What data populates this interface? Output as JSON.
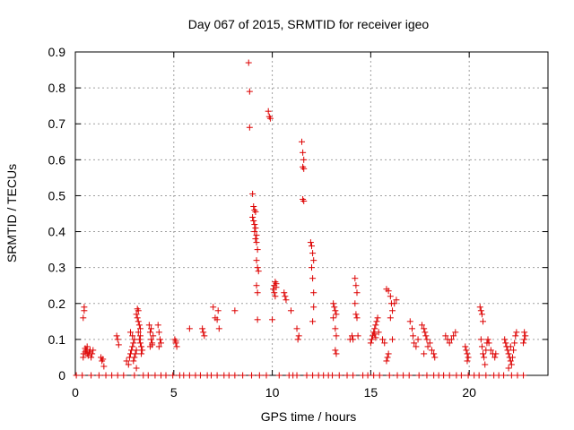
{
  "chart_data": {
    "type": "scatter",
    "title": "Day 067 of 2015, SRMTID for receiver igeo",
    "xlabel": "GPS time / hours",
    "ylabel": "SRMTID / TECUs",
    "xlim": [
      0,
      24
    ],
    "ylim": [
      0,
      0.9
    ],
    "xticks": [
      0,
      5,
      10,
      15,
      20
    ],
    "yticks": [
      0,
      0.1,
      0.2,
      0.3,
      0.4,
      0.5,
      0.6,
      0.7,
      0.8,
      0.9
    ],
    "xtick_labels": [
      "0",
      "5",
      "10",
      "15",
      "20"
    ],
    "ytick_labels": [
      "0",
      "0.1",
      "0.2",
      "0.3",
      "0.4",
      "0.5",
      "0.6",
      "0.7",
      "0.8",
      "0.9"
    ],
    "grid": true,
    "marker": "+",
    "color": "#dd0000",
    "series": [
      {
        "name": "SRMTID",
        "points": [
          [
            0.4,
            0.16
          ],
          [
            0.45,
            0.18
          ],
          [
            0.45,
            0.19
          ],
          [
            0.4,
            0.05
          ],
          [
            0.42,
            0.06
          ],
          [
            0.5,
            0.065
          ],
          [
            0.55,
            0.07
          ],
          [
            0.6,
            0.06
          ],
          [
            0.65,
            0.055
          ],
          [
            0.7,
            0.065
          ],
          [
            0.75,
            0.07
          ],
          [
            0.8,
            0.05
          ],
          [
            0.85,
            0.06
          ],
          [
            0.9,
            0.07
          ],
          [
            0.5,
            0.075
          ],
          [
            0.6,
            0.08
          ],
          [
            1.3,
            0.05
          ],
          [
            1.35,
            0.04
          ],
          [
            1.4,
            0.045
          ],
          [
            1.45,
            0.025
          ],
          [
            2.1,
            0.11
          ],
          [
            2.15,
            0.1
          ],
          [
            2.2,
            0.085
          ],
          [
            2.6,
            0.04
          ],
          [
            2.7,
            0.03
          ],
          [
            2.75,
            0.05
          ],
          [
            2.8,
            0.06
          ],
          [
            2.85,
            0.07
          ],
          [
            2.9,
            0.08
          ],
          [
            2.95,
            0.09
          ],
          [
            3.0,
            0.1
          ],
          [
            2.8,
            0.12
          ],
          [
            2.9,
            0.11
          ],
          [
            3.0,
            0.05
          ],
          [
            3.05,
            0.06
          ],
          [
            3.1,
            0.07
          ],
          [
            2.95,
            0.04
          ],
          [
            3.1,
            0.17
          ],
          [
            3.15,
            0.16
          ],
          [
            3.2,
            0.15
          ],
          [
            3.25,
            0.14
          ],
          [
            3.3,
            0.13
          ],
          [
            3.2,
            0.12
          ],
          [
            3.25,
            0.1
          ],
          [
            3.3,
            0.09
          ],
          [
            3.35,
            0.08
          ],
          [
            3.2,
            0.18
          ],
          [
            3.15,
            0.185
          ],
          [
            3.3,
            0.11
          ],
          [
            3.1,
            0.02
          ],
          [
            3.35,
            0.06
          ],
          [
            3.4,
            0.07
          ],
          [
            3.75,
            0.14
          ],
          [
            3.8,
            0.12
          ],
          [
            3.85,
            0.1
          ],
          [
            3.9,
            0.09
          ],
          [
            3.8,
            0.08
          ],
          [
            3.85,
            0.13
          ],
          [
            3.9,
            0.085
          ],
          [
            3.95,
            0.11
          ],
          [
            4.2,
            0.14
          ],
          [
            4.25,
            0.12
          ],
          [
            4.3,
            0.1
          ],
          [
            4.35,
            0.09
          ],
          [
            4.25,
            0.08
          ],
          [
            5.05,
            0.1
          ],
          [
            5.1,
            0.09
          ],
          [
            5.15,
            0.08
          ],
          [
            5.1,
            0.095
          ],
          [
            5.8,
            0.13
          ],
          [
            6.45,
            0.13
          ],
          [
            6.5,
            0.12
          ],
          [
            6.55,
            0.11
          ],
          [
            7.0,
            0.19
          ],
          [
            7.1,
            0.16
          ],
          [
            7.2,
            0.155
          ],
          [
            7.25,
            0.18
          ],
          [
            7.3,
            0.13
          ],
          [
            8.1,
            0.18
          ],
          [
            8.8,
            0.87
          ],
          [
            8.85,
            0.79
          ],
          [
            8.85,
            0.69
          ],
          [
            9.0,
            0.505
          ],
          [
            9.05,
            0.47
          ],
          [
            9.1,
            0.46
          ],
          [
            9.15,
            0.455
          ],
          [
            9.0,
            0.44
          ],
          [
            9.05,
            0.43
          ],
          [
            9.1,
            0.42
          ],
          [
            9.15,
            0.41
          ],
          [
            9.1,
            0.4
          ],
          [
            9.2,
            0.39
          ],
          [
            9.15,
            0.38
          ],
          [
            9.2,
            0.37
          ],
          [
            9.25,
            0.35
          ],
          [
            9.2,
            0.32
          ],
          [
            9.25,
            0.3
          ],
          [
            9.3,
            0.29
          ],
          [
            9.2,
            0.25
          ],
          [
            9.25,
            0.23
          ],
          [
            9.25,
            0.155
          ],
          [
            9.8,
            0.735
          ],
          [
            9.85,
            0.72
          ],
          [
            9.9,
            0.715
          ],
          [
            10.05,
            0.24
          ],
          [
            10.1,
            0.25
          ],
          [
            10.15,
            0.26
          ],
          [
            10.2,
            0.255
          ],
          [
            10.1,
            0.23
          ],
          [
            10.15,
            0.22
          ],
          [
            10.2,
            0.245
          ],
          [
            10.0,
            0.155
          ],
          [
            10.6,
            0.23
          ],
          [
            10.65,
            0.22
          ],
          [
            10.7,
            0.21
          ],
          [
            10.95,
            0.18
          ],
          [
            11.25,
            0.13
          ],
          [
            11.3,
            0.1
          ],
          [
            11.35,
            0.11
          ],
          [
            11.5,
            0.65
          ],
          [
            11.55,
            0.62
          ],
          [
            11.6,
            0.6
          ],
          [
            11.55,
            0.58
          ],
          [
            11.6,
            0.575
          ],
          [
            11.55,
            0.49
          ],
          [
            11.6,
            0.485
          ],
          [
            11.95,
            0.37
          ],
          [
            12.0,
            0.36
          ],
          [
            12.05,
            0.34
          ],
          [
            12.1,
            0.32
          ],
          [
            12.0,
            0.3
          ],
          [
            12.05,
            0.27
          ],
          [
            12.1,
            0.23
          ],
          [
            12.1,
            0.19
          ],
          [
            12.05,
            0.15
          ],
          [
            13.1,
            0.2
          ],
          [
            13.15,
            0.19
          ],
          [
            13.2,
            0.18
          ],
          [
            13.25,
            0.17
          ],
          [
            13.1,
            0.16
          ],
          [
            13.2,
            0.13
          ],
          [
            13.25,
            0.11
          ],
          [
            13.2,
            0.07
          ],
          [
            13.25,
            0.06
          ],
          [
            13.95,
            0.1
          ],
          [
            14.05,
            0.11
          ],
          [
            14.1,
            0.1
          ],
          [
            14.2,
            0.27
          ],
          [
            14.25,
            0.25
          ],
          [
            14.3,
            0.23
          ],
          [
            14.2,
            0.2
          ],
          [
            14.25,
            0.17
          ],
          [
            14.3,
            0.16
          ],
          [
            14.35,
            0.11
          ],
          [
            15.0,
            0.09
          ],
          [
            15.05,
            0.1
          ],
          [
            15.1,
            0.11
          ],
          [
            15.15,
            0.12
          ],
          [
            15.2,
            0.13
          ],
          [
            15.25,
            0.14
          ],
          [
            15.3,
            0.15
          ],
          [
            15.35,
            0.16
          ],
          [
            15.2,
            0.115
          ],
          [
            15.25,
            0.105
          ],
          [
            15.4,
            0.12
          ],
          [
            15.6,
            0.1
          ],
          [
            15.7,
            0.09
          ],
          [
            15.8,
            0.04
          ],
          [
            15.85,
            0.05
          ],
          [
            15.9,
            0.06
          ],
          [
            15.8,
            0.24
          ],
          [
            15.9,
            0.235
          ],
          [
            16.0,
            0.22
          ],
          [
            16.05,
            0.2
          ],
          [
            16.1,
            0.18
          ],
          [
            16.0,
            0.16
          ],
          [
            16.2,
            0.2
          ],
          [
            16.3,
            0.21
          ],
          [
            16.1,
            0.1
          ],
          [
            17.0,
            0.15
          ],
          [
            17.1,
            0.13
          ],
          [
            17.15,
            0.11
          ],
          [
            17.2,
            0.09
          ],
          [
            17.3,
            0.08
          ],
          [
            17.4,
            0.1
          ],
          [
            17.6,
            0.14
          ],
          [
            17.7,
            0.13
          ],
          [
            17.75,
            0.12
          ],
          [
            17.8,
            0.11
          ],
          [
            17.85,
            0.1
          ],
          [
            17.7,
            0.06
          ],
          [
            17.9,
            0.08
          ],
          [
            18.0,
            0.09
          ],
          [
            18.1,
            0.07
          ],
          [
            18.2,
            0.06
          ],
          [
            18.25,
            0.05
          ],
          [
            18.8,
            0.11
          ],
          [
            18.9,
            0.1
          ],
          [
            19.0,
            0.09
          ],
          [
            19.1,
            0.1
          ],
          [
            19.2,
            0.11
          ],
          [
            19.3,
            0.12
          ],
          [
            19.8,
            0.08
          ],
          [
            19.85,
            0.07
          ],
          [
            19.9,
            0.06
          ],
          [
            19.95,
            0.05
          ],
          [
            19.9,
            0.04
          ],
          [
            20.55,
            0.19
          ],
          [
            20.6,
            0.18
          ],
          [
            20.65,
            0.17
          ],
          [
            20.7,
            0.15
          ],
          [
            20.6,
            0.1
          ],
          [
            20.65,
            0.08
          ],
          [
            20.7,
            0.06
          ],
          [
            20.75,
            0.05
          ],
          [
            20.8,
            0.03
          ],
          [
            20.85,
            0.07
          ],
          [
            20.9,
            0.09
          ],
          [
            20.95,
            0.1
          ],
          [
            21.0,
            0.09
          ],
          [
            21.1,
            0.07
          ],
          [
            21.2,
            0.06
          ],
          [
            21.3,
            0.05
          ],
          [
            21.35,
            0.06
          ],
          [
            21.8,
            0.1
          ],
          [
            21.85,
            0.09
          ],
          [
            21.9,
            0.08
          ],
          [
            21.95,
            0.07
          ],
          [
            22.0,
            0.06
          ],
          [
            22.05,
            0.05
          ],
          [
            22.1,
            0.04
          ],
          [
            22.15,
            0.03
          ],
          [
            22.2,
            0.05
          ],
          [
            22.25,
            0.07
          ],
          [
            22.3,
            0.09
          ],
          [
            22.35,
            0.11
          ],
          [
            22.4,
            0.12
          ],
          [
            22.0,
            0.02
          ],
          [
            22.1,
            0.08
          ],
          [
            22.75,
            0.09
          ],
          [
            22.8,
            0.1
          ],
          [
            22.85,
            0.11
          ],
          [
            22.8,
            0.12
          ]
        ],
        "zero_points_x": [
          0.05,
          0.35,
          0.8,
          1.2,
          1.55,
          1.85,
          2.15,
          2.45,
          3.0,
          3.45,
          3.7,
          4.05,
          4.35,
          4.6,
          4.95,
          5.3,
          5.5,
          5.8,
          6.1,
          6.35,
          6.7,
          6.9,
          7.2,
          7.55,
          7.8,
          8.1,
          8.5,
          8.95,
          9.35,
          9.7,
          10.35,
          10.85,
          11.05,
          11.25,
          11.75,
          12.05,
          12.35,
          12.6,
          12.85,
          13.05,
          13.4,
          13.8,
          14.1,
          14.6,
          14.85,
          15.15,
          15.45,
          15.95,
          16.35,
          16.65,
          16.95,
          17.45,
          17.85,
          18.2,
          18.45,
          18.7,
          19.0,
          19.35,
          19.6,
          19.95,
          20.25,
          20.5,
          20.85,
          21.25,
          21.5,
          21.75,
          22.15,
          22.45,
          22.75
        ]
      }
    ]
  }
}
